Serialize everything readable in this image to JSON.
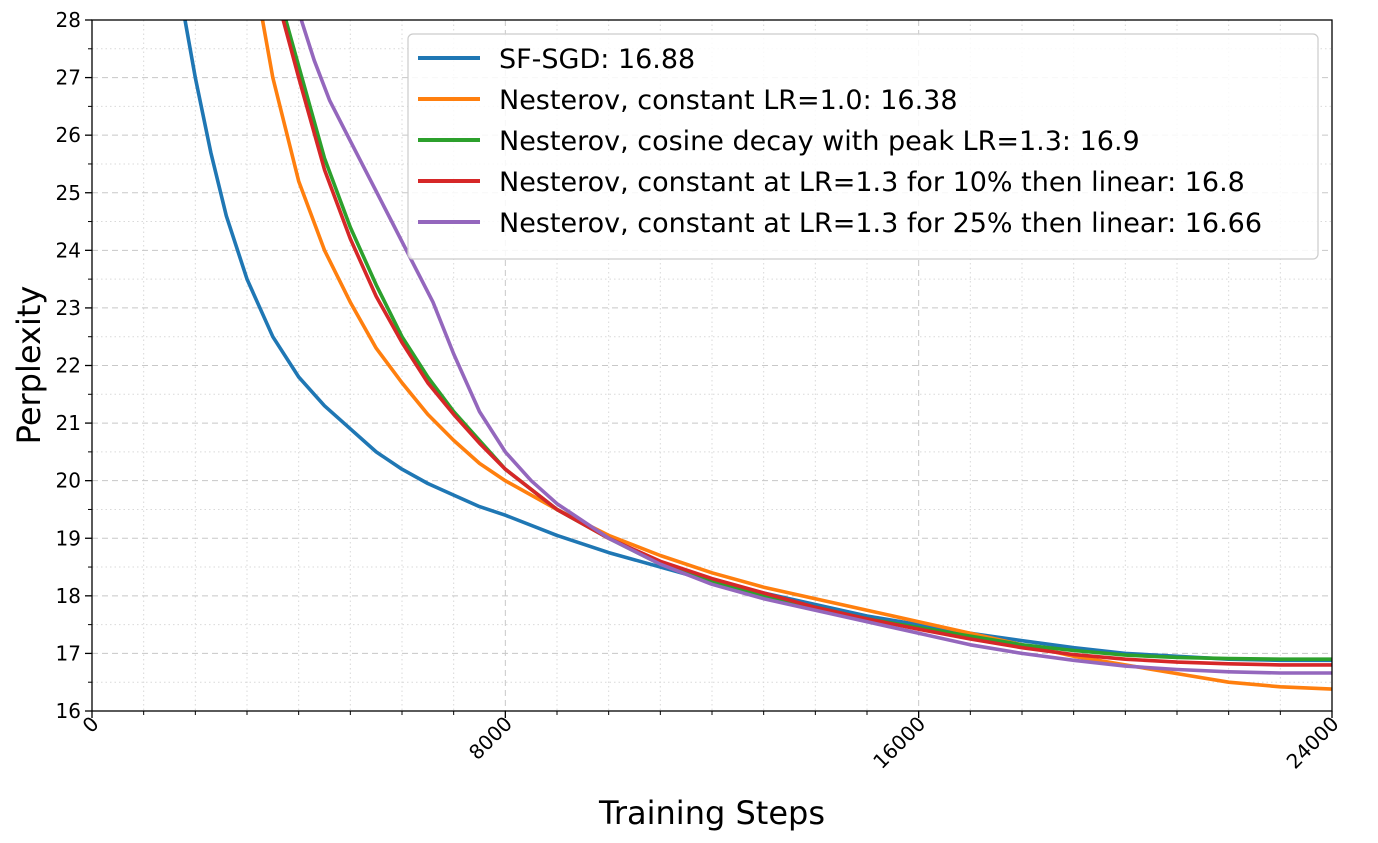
{
  "chart_data": {
    "type": "line",
    "title": "",
    "xlabel": "Training Steps",
    "ylabel": "Perplexity",
    "xlim": [
      0,
      24000
    ],
    "ylim": [
      16,
      28
    ],
    "xticks": [
      0,
      8000,
      16000,
      24000
    ],
    "xtick_labels": [
      "0",
      "8000",
      "16000",
      "24000"
    ],
    "yticks": [
      16,
      17,
      18,
      19,
      20,
      21,
      22,
      23,
      24,
      25,
      26,
      27,
      28
    ],
    "ytick_labels": [
      "16",
      "17",
      "18",
      "19",
      "20",
      "21",
      "22",
      "23",
      "24",
      "25",
      "26",
      "27",
      "28"
    ],
    "grid": "major dashed, minor dotted",
    "legend_position": "top-right",
    "series": [
      {
        "name": "SF-SGD: 16.88",
        "color": "#1f77b4",
        "x": [
          1800,
          2000,
          2300,
          2600,
          3000,
          3500,
          4000,
          4500,
          5000,
          5500,
          6000,
          6500,
          7000,
          7500,
          8000,
          9000,
          10000,
          11000,
          12000,
          13000,
          14000,
          15000,
          16000,
          17000,
          18000,
          19000,
          20000,
          21000,
          22000,
          23000,
          24000
        ],
        "y": [
          28.0,
          27.0,
          25.7,
          24.6,
          23.5,
          22.5,
          21.8,
          21.3,
          20.9,
          20.5,
          20.2,
          19.95,
          19.75,
          19.55,
          19.4,
          19.05,
          18.75,
          18.5,
          18.25,
          18.05,
          17.85,
          17.65,
          17.5,
          17.35,
          17.22,
          17.1,
          17.0,
          16.95,
          16.9,
          16.88,
          16.88
        ]
      },
      {
        "name": "Nesterov, constant LR=1.0: 16.38",
        "color": "#ff7f0e",
        "x": [
          3300,
          3500,
          4000,
          4500,
          5000,
          5500,
          6000,
          6500,
          7000,
          7500,
          8000,
          9000,
          10000,
          11000,
          12000,
          13000,
          14000,
          15000,
          16000,
          17000,
          18000,
          19000,
          20000,
          21000,
          22000,
          23000,
          24000
        ],
        "y": [
          28.0,
          27.0,
          25.2,
          24.0,
          23.1,
          22.3,
          21.7,
          21.15,
          20.7,
          20.3,
          20.0,
          19.5,
          19.05,
          18.7,
          18.4,
          18.15,
          17.95,
          17.75,
          17.55,
          17.35,
          17.15,
          16.95,
          16.8,
          16.65,
          16.5,
          16.42,
          16.38
        ]
      },
      {
        "name": "Nesterov, cosine decay with peak LR=1.3: 16.9",
        "color": "#2ca02c",
        "x": [
          3750,
          4000,
          4500,
          5000,
          5500,
          6000,
          6500,
          7000,
          7500,
          8000,
          9000,
          10000,
          11000,
          12000,
          13000,
          14000,
          15000,
          16000,
          17000,
          18000,
          19000,
          20000,
          21000,
          22000,
          23000,
          24000
        ],
        "y": [
          28.0,
          27.2,
          25.6,
          24.4,
          23.4,
          22.5,
          21.8,
          21.2,
          20.7,
          20.2,
          19.5,
          19.0,
          18.55,
          18.25,
          18.0,
          17.8,
          17.6,
          17.45,
          17.3,
          17.15,
          17.05,
          16.97,
          16.93,
          16.91,
          16.9,
          16.9
        ]
      },
      {
        "name": "Nesterov, constant at LR=1.3 for 10% then linear: 16.8",
        "color": "#d62728",
        "x": [
          3700,
          4000,
          4500,
          5000,
          5500,
          6000,
          6500,
          7000,
          7500,
          8000,
          9000,
          10000,
          11000,
          12000,
          13000,
          14000,
          15000,
          16000,
          17000,
          18000,
          19000,
          20000,
          21000,
          22000,
          23000,
          24000
        ],
        "y": [
          28.0,
          27.0,
          25.4,
          24.2,
          23.2,
          22.4,
          21.7,
          21.15,
          20.65,
          20.2,
          19.5,
          19.0,
          18.6,
          18.3,
          18.05,
          17.8,
          17.6,
          17.42,
          17.25,
          17.1,
          16.98,
          16.9,
          16.85,
          16.82,
          16.8,
          16.8
        ]
      },
      {
        "name": "Nesterov, constant at LR=1.3 for 25% then linear: 16.66",
        "color": "#9467bd",
        "x": [
          4050,
          4300,
          4600,
          5000,
          5400,
          5800,
          6200,
          6600,
          7000,
          7500,
          8000,
          8500,
          9000,
          10000,
          11000,
          12000,
          13000,
          14000,
          15000,
          16000,
          17000,
          18000,
          19000,
          20000,
          21000,
          22000,
          23000,
          24000
        ],
        "y": [
          28.0,
          27.3,
          26.6,
          25.9,
          25.2,
          24.5,
          23.8,
          23.1,
          22.2,
          21.2,
          20.5,
          20.0,
          19.6,
          19.0,
          18.55,
          18.2,
          17.95,
          17.75,
          17.55,
          17.35,
          17.15,
          17.0,
          16.88,
          16.78,
          16.72,
          16.68,
          16.66,
          16.66
        ]
      }
    ]
  }
}
